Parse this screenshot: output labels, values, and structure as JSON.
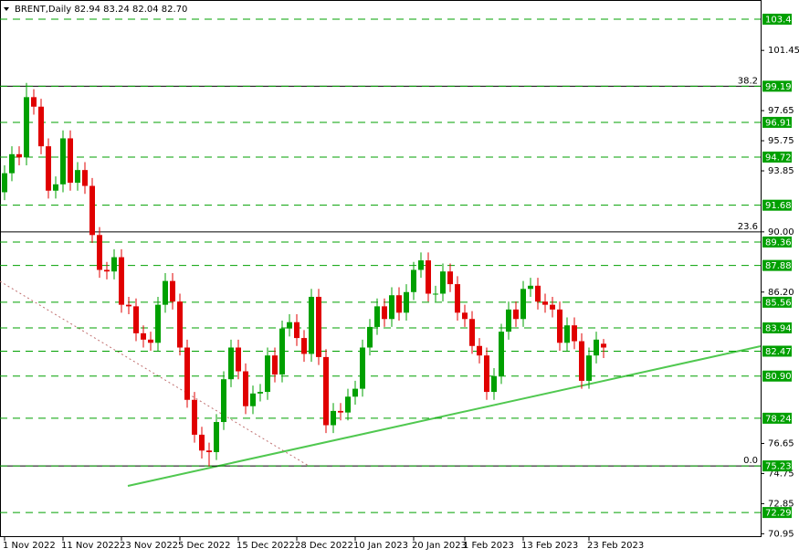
{
  "chart_data": {
    "type": "candlestick",
    "title": "BRENT,Daily  82.94 83.24 82.04 82.70",
    "up_color": "#00a000",
    "down_color": "#e00000",
    "level_color": "#00a000",
    "ylim": [
      70.74,
      104.63
    ],
    "yticks": [
      101.45,
      97.65,
      95.75,
      93.85,
      {
        "value": 90,
        "label": "90.00"
      },
      {
        "value": 86.2,
        "label": "86.20"
      },
      76.65,
      74.75,
      72.85,
      70.95
    ],
    "levels": [
      103.42,
      99.19,
      96.91,
      94.72,
      91.68,
      89.36,
      87.88,
      85.56,
      83.94,
      82.47,
      {
        "value": 80.9,
        "label": "80.90"
      },
      78.24,
      75.23,
      72.29
    ],
    "fib": [
      {
        "label": "38.2",
        "value": 99.19
      },
      {
        "label": "23.6",
        "value": 90
      },
      {
        "label": "0.0",
        "value": 75.23
      }
    ],
    "categories": [
      "1 Nov 2022",
      null,
      null,
      null,
      null,
      null,
      null,
      null,
      "11 Nov 2022",
      null,
      null,
      null,
      null,
      null,
      null,
      null,
      "23 Nov 2022",
      null,
      null,
      null,
      null,
      null,
      null,
      null,
      "5 Dec 2022",
      null,
      null,
      null,
      null,
      null,
      null,
      null,
      "15 Dec 2022",
      null,
      null,
      null,
      null,
      null,
      null,
      null,
      "28 Dec 2022",
      null,
      null,
      null,
      null,
      null,
      null,
      null,
      "10 Jan 2023",
      null,
      null,
      null,
      null,
      null,
      null,
      null,
      "20 Jan 2023",
      null,
      null,
      null,
      null,
      null,
      null,
      "1 Feb 2023",
      null,
      null,
      null,
      null,
      null,
      null,
      null,
      "13 Feb 2023",
      null,
      null,
      null,
      null,
      null,
      null,
      null,
      null,
      "23 Feb 2023",
      null,
      null
    ],
    "open": [
      92.5,
      93.7,
      94.9,
      94.7,
      98.5,
      97.9,
      95.4,
      92.6,
      93.0,
      95.9,
      93.1,
      93.9,
      92.9,
      89.8,
      87.6,
      87.5,
      88.4,
      85.4,
      85.3,
      83.6,
      83.2,
      83.0,
      85.4,
      86.9,
      85.6,
      82.7,
      79.4,
      77.2,
      76.2,
      76.1,
      78.0,
      80.7,
      82.7,
      81.2,
      79.0,
      79.8,
      79.9,
      82.2,
      81.0,
      83.9,
      84.3,
      83.3,
      82.3,
      85.9,
      82.1,
      77.8,
      78.7,
      78.6,
      79.6,
      80.1,
      82.7,
      84.0,
      85.3,
      84.5,
      86.0,
      84.9,
      86.2,
      87.6,
      88.2,
      86.1,
      86.1,
      87.5,
      86.7,
      84.9,
      84.5,
      82.8,
      82.2,
      79.9,
      80.9,
      83.7,
      85.1,
      84.5,
      86.4,
      86.6,
      85.6,
      85.4,
      85.1,
      83.0,
      84.1,
      83.1,
      80.6,
      82.2,
      82.94
    ],
    "high": [
      94.2,
      95.4,
      95.4,
      99.4,
      99.0,
      98.4,
      95.9,
      93.5,
      96.4,
      96.4,
      94.4,
      94.4,
      93.4,
      90.3,
      88.1,
      88.9,
      88.9,
      85.9,
      85.8,
      84.1,
      83.7,
      85.9,
      87.4,
      87.4,
      86.1,
      83.2,
      79.9,
      77.7,
      76.7,
      78.5,
      81.2,
      83.2,
      83.2,
      81.7,
      80.3,
      80.4,
      82.7,
      82.7,
      84.4,
      84.8,
      84.8,
      83.8,
      86.4,
      86.4,
      82.6,
      79.2,
      79.2,
      80.1,
      80.6,
      83.2,
      84.5,
      85.8,
      85.8,
      86.5,
      86.5,
      86.7,
      88.1,
      88.7,
      88.7,
      86.6,
      88.0,
      88.0,
      87.2,
      85.4,
      85.0,
      83.3,
      82.7,
      81.4,
      84.2,
      85.6,
      85.6,
      86.9,
      87.1,
      87.1,
      86.1,
      85.9,
      85.6,
      84.6,
      84.6,
      83.6,
      82.7,
      83.7,
      83.24
    ],
    "low": [
      92.0,
      93.2,
      94.2,
      94.2,
      97.4,
      94.9,
      92.1,
      92.1,
      92.5,
      92.6,
      92.6,
      92.4,
      89.3,
      87.1,
      87.0,
      87.0,
      84.9,
      84.8,
      83.1,
      82.7,
      82.5,
      82.5,
      84.9,
      85.1,
      82.2,
      78.9,
      76.7,
      75.7,
      75.2,
      75.6,
      77.5,
      80.2,
      80.7,
      78.5,
      78.5,
      79.3,
      79.4,
      80.5,
      80.5,
      83.4,
      82.8,
      81.8,
      81.8,
      81.6,
      77.3,
      77.3,
      78.1,
      78.1,
      79.1,
      79.6,
      82.2,
      83.5,
      84.0,
      84.0,
      84.4,
      84.4,
      85.7,
      87.1,
      85.6,
      85.6,
      85.6,
      86.2,
      84.4,
      84.0,
      82.3,
      81.7,
      79.4,
      79.4,
      80.4,
      83.2,
      84.0,
      84.0,
      85.9,
      85.1,
      84.9,
      84.6,
      82.5,
      82.5,
      82.6,
      80.1,
      80.1,
      81.7,
      82.04
    ],
    "close": [
      93.7,
      94.9,
      94.7,
      98.5,
      97.9,
      95.4,
      92.6,
      93.0,
      95.9,
      93.1,
      93.9,
      92.9,
      89.8,
      87.6,
      87.5,
      88.4,
      85.4,
      85.3,
      83.6,
      83.2,
      83.0,
      85.4,
      86.9,
      85.6,
      82.7,
      79.4,
      77.2,
      76.2,
      76.1,
      78.0,
      80.7,
      82.7,
      81.2,
      79.0,
      79.8,
      79.9,
      82.2,
      81.0,
      83.9,
      84.3,
      83.3,
      82.3,
      85.9,
      82.1,
      77.8,
      78.7,
      78.6,
      79.6,
      80.1,
      82.7,
      84.0,
      85.3,
      84.5,
      86.0,
      84.9,
      86.2,
      87.6,
      88.2,
      86.1,
      86.1,
      87.5,
      86.7,
      84.9,
      84.5,
      82.8,
      82.2,
      79.9,
      80.9,
      83.7,
      85.1,
      84.5,
      86.4,
      86.6,
      85.6,
      85.4,
      85.1,
      83.0,
      84.1,
      83.1,
      80.6,
      82.2,
      83.2,
      82.7
    ]
  }
}
